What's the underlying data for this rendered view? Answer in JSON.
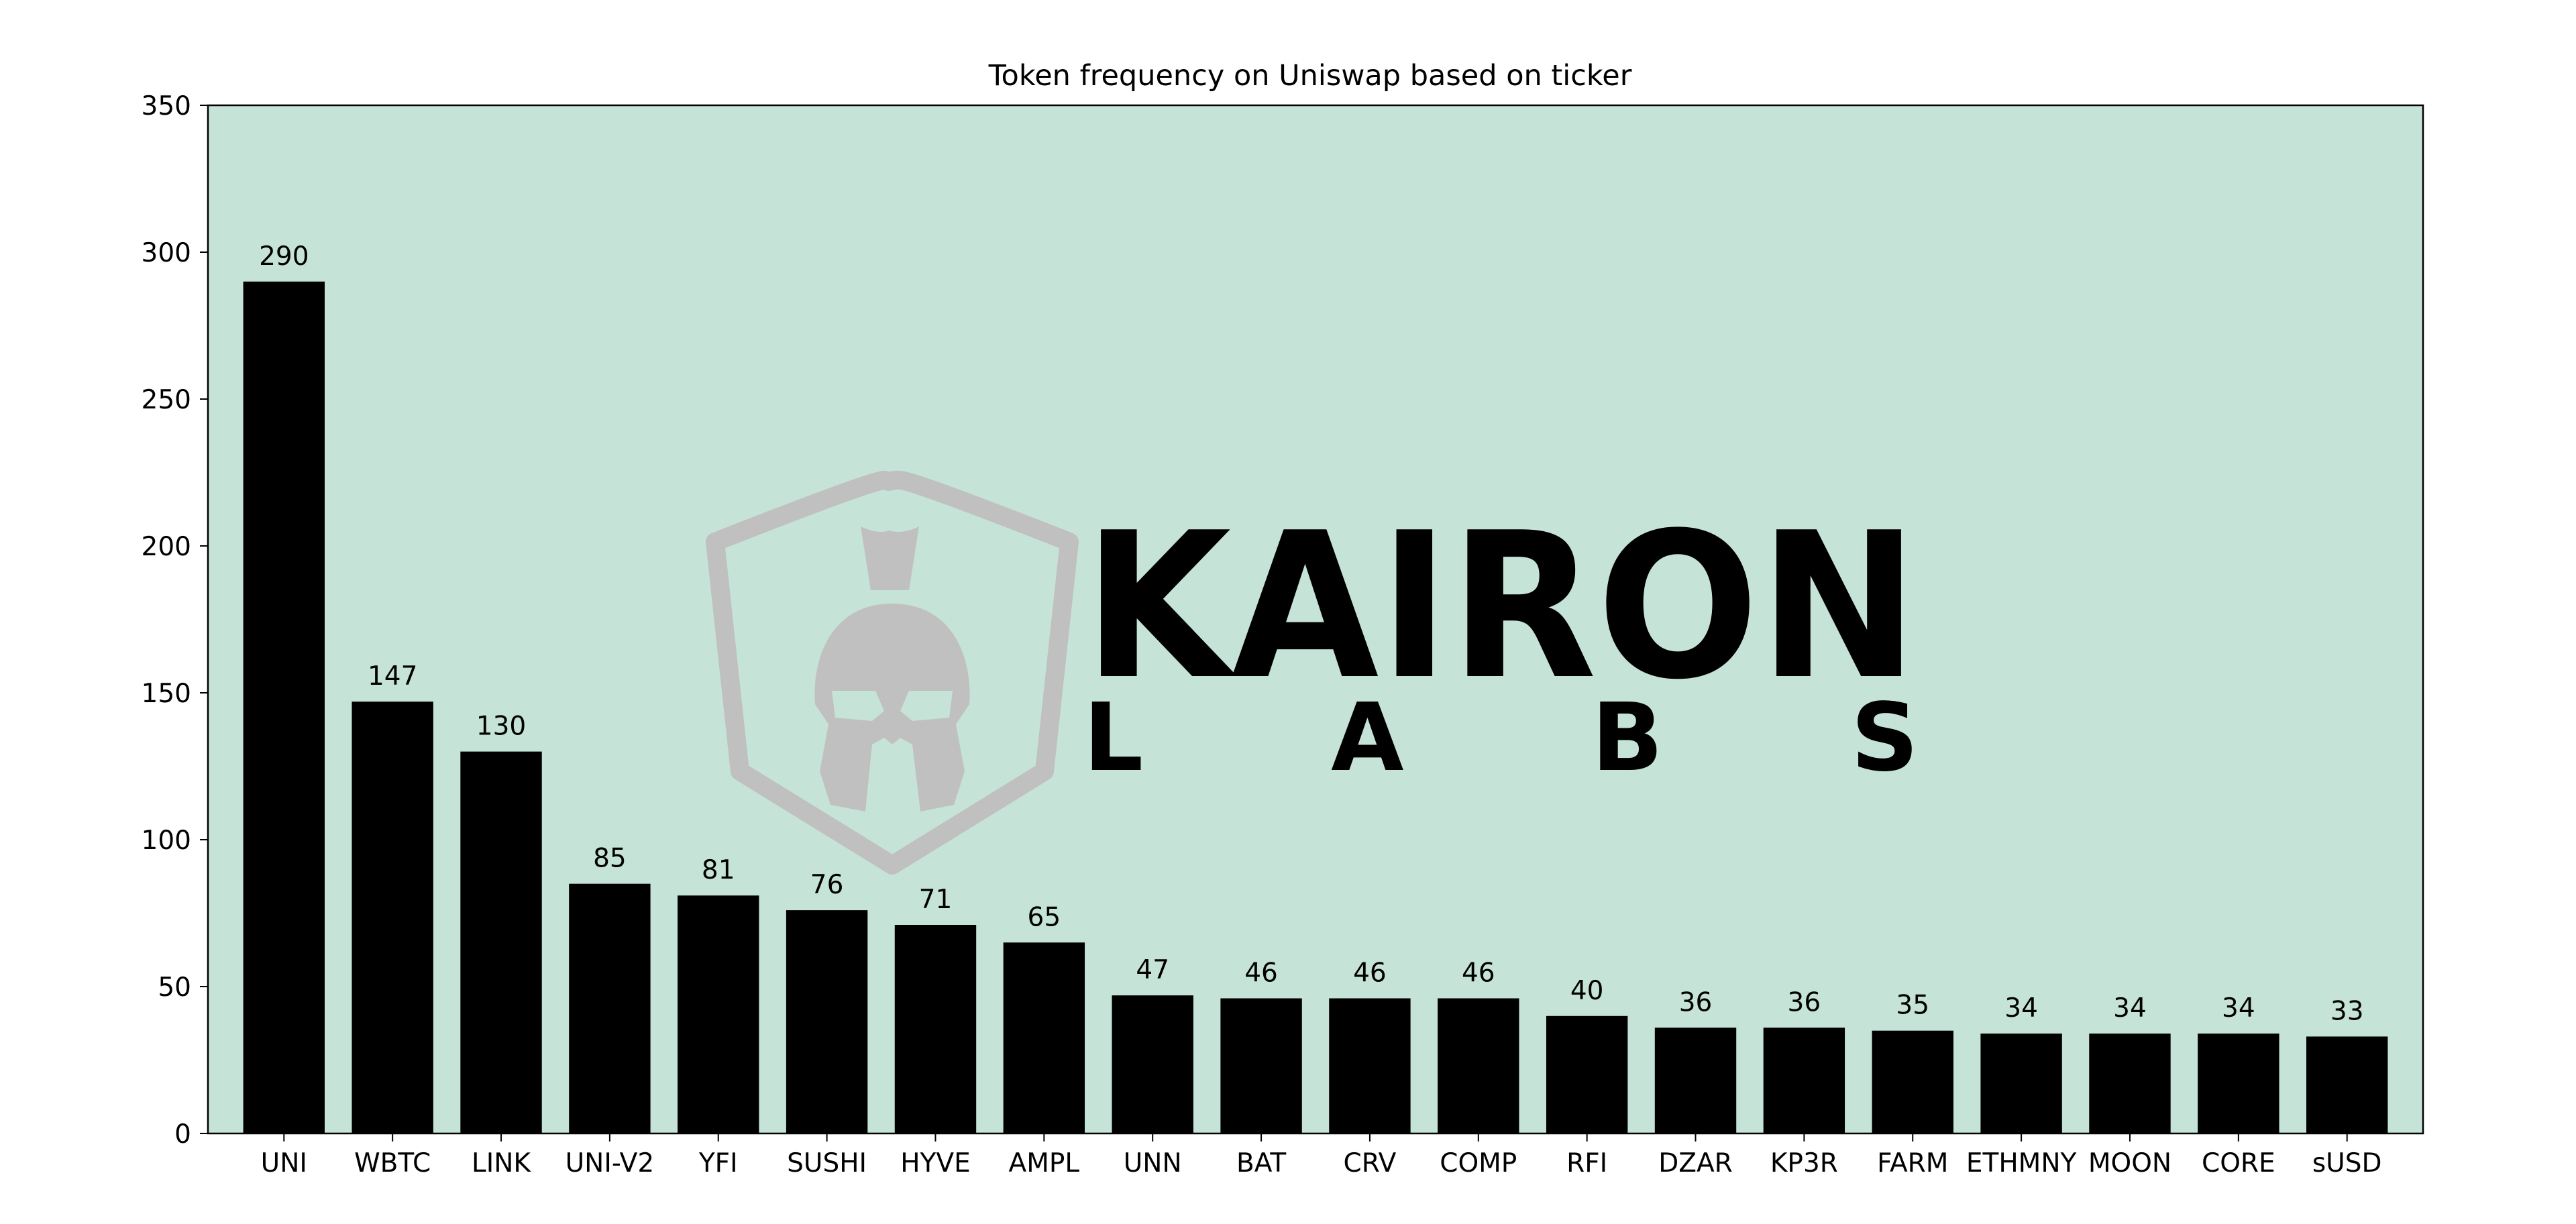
{
  "chart_data": {
    "type": "bar",
    "title": "Token frequency on Uniswap based on ticker",
    "xlabel": "",
    "ylabel": "",
    "categories": [
      "UNI",
      "WBTC",
      "LINK",
      "UNI-V2",
      "YFI",
      "SUSHI",
      "HYVE",
      "AMPL",
      "UNN",
      "BAT",
      "CRV",
      "COMP",
      "RFI",
      "DZAR",
      "KP3R",
      "FARM",
      "ETHMNY",
      "MOON",
      "CORE",
      "sUSD"
    ],
    "values": [
      290,
      147,
      130,
      85,
      81,
      76,
      71,
      65,
      47,
      46,
      46,
      46,
      40,
      36,
      36,
      35,
      34,
      34,
      34,
      33
    ],
    "ylim": [
      0,
      350
    ],
    "yticks": [
      0,
      50,
      100,
      150,
      200,
      250,
      300,
      350
    ],
    "grid": false,
    "legend": "none",
    "data_labels": true,
    "colors": {
      "bar": "#000000",
      "plot_background": "#c6e3d8",
      "figure_background": "#ffffff",
      "watermark": "#c0c0c0"
    }
  },
  "watermark": {
    "brand": "KAIRON",
    "sub": "LABS",
    "icon": "spartan-helmet-shield-icon"
  }
}
